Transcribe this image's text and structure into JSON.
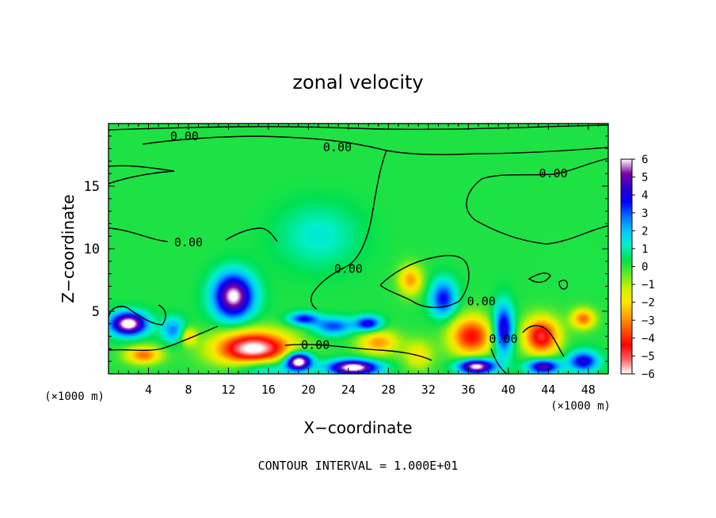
{
  "chart_data": {
    "type": "heatmap",
    "title": "zonal velocity",
    "xlabel": "X−coordinate",
    "ylabel": "Z−coordinate",
    "x_unit_left": "(×1000 m)",
    "x_unit_right": "(×1000 m)",
    "footer": "CONTOUR INTERVAL = 1.000E+01",
    "xlim": [
      0,
      50
    ],
    "ylim": [
      0,
      20
    ],
    "x_ticks": [
      "4",
      "8",
      "12",
      "16",
      "20",
      "24",
      "28",
      "32",
      "36",
      "40",
      "44",
      "48"
    ],
    "y_ticks": [
      "5",
      "10",
      "15"
    ],
    "colorbar": {
      "labels": [
        "6",
        "5",
        "4",
        "3",
        "2",
        "1",
        "0",
        "−1",
        "−2",
        "−3",
        "−4",
        "−5",
        "−6"
      ],
      "range": [
        -6,
        6
      ],
      "colors": [
        "#ffffff",
        "#7b00a8",
        "#2a00c8",
        "#0000ff",
        "#0072ff",
        "#00c8ff",
        "#00f0c8",
        "#00e050",
        "#5fe82a",
        "#c8f000",
        "#ffe600",
        "#ffa000",
        "#ff5000",
        "#ff0000",
        "#ff6060",
        "#ffffff"
      ]
    },
    "contour_labels": [
      {
        "text": "0.00",
        "x": 7.6,
        "y": 19.0
      },
      {
        "text": "0.00",
        "x": 22.9,
        "y": 18.1
      },
      {
        "text": "0.00",
        "x": 44.5,
        "y": 16.0
      },
      {
        "text": "0.00",
        "x": 8.0,
        "y": 10.5
      },
      {
        "text": "0.00",
        "x": 24.0,
        "y": 8.4
      },
      {
        "text": "0.00",
        "x": 37.3,
        "y": 5.8
      },
      {
        "text": "0.00",
        "x": 39.5,
        "y": 2.8
      },
      {
        "text": "0.00",
        "x": 20.7,
        "y": 2.3
      }
    ],
    "features": [
      {
        "x": 2.0,
        "y": 4.0,
        "sx": 1.8,
        "sy": 0.9,
        "value": 6.5
      },
      {
        "x": 3.5,
        "y": 1.5,
        "sx": 1.8,
        "sy": 0.7,
        "value": -3.5
      },
      {
        "x": 6.5,
        "y": 3.5,
        "sx": 1.2,
        "sy": 1.0,
        "value": 2.5
      },
      {
        "x": 8.0,
        "y": 3.0,
        "sx": 0.8,
        "sy": 0.7,
        "value": -2.5
      },
      {
        "x": 12.5,
        "y": 6.2,
        "sx": 2.0,
        "sy": 1.8,
        "value": 6.0
      },
      {
        "x": 14.5,
        "y": 2.0,
        "sx": 3.8,
        "sy": 1.4,
        "value": -6.5
      },
      {
        "x": 15.5,
        "y": 0.5,
        "sx": 3.0,
        "sy": 0.8,
        "value": 2.5
      },
      {
        "x": 19.0,
        "y": 1.0,
        "sx": 1.3,
        "sy": 0.7,
        "value": 7.0
      },
      {
        "x": 19.5,
        "y": 4.4,
        "sx": 1.5,
        "sy": 0.5,
        "value": 3.5
      },
      {
        "x": 22.5,
        "y": 3.8,
        "sx": 2.0,
        "sy": 0.7,
        "value": 3.0
      },
      {
        "x": 24.5,
        "y": 0.5,
        "sx": 2.5,
        "sy": 0.6,
        "value": 6.5
      },
      {
        "x": 26.0,
        "y": 4.0,
        "sx": 1.3,
        "sy": 0.6,
        "value": 4.0
      },
      {
        "x": 27.0,
        "y": 2.5,
        "sx": 2.0,
        "sy": 1.0,
        "value": -3.0
      },
      {
        "x": 30.2,
        "y": 7.5,
        "sx": 1.2,
        "sy": 1.2,
        "value": -3.0
      },
      {
        "x": 33.5,
        "y": 6.0,
        "sx": 1.3,
        "sy": 1.5,
        "value": 3.5
      },
      {
        "x": 31.0,
        "y": 1.5,
        "sx": 1.5,
        "sy": 1.2,
        "value": -2.0
      },
      {
        "x": 36.3,
        "y": 3.0,
        "sx": 2.2,
        "sy": 1.6,
        "value": -4.5
      },
      {
        "x": 36.8,
        "y": 0.6,
        "sx": 1.8,
        "sy": 0.6,
        "value": 6.5
      },
      {
        "x": 39.5,
        "y": 3.5,
        "sx": 1.0,
        "sy": 2.0,
        "value": 4.5
      },
      {
        "x": 43.3,
        "y": 3.0,
        "sx": 1.8,
        "sy": 1.5,
        "value": -5.0
      },
      {
        "x": 43.5,
        "y": 0.6,
        "sx": 1.6,
        "sy": 0.6,
        "value": 5.0
      },
      {
        "x": 47.5,
        "y": 4.4,
        "sx": 1.2,
        "sy": 0.8,
        "value": -3.5
      },
      {
        "x": 47.5,
        "y": 1.0,
        "sx": 1.5,
        "sy": 0.8,
        "value": 4.0
      },
      {
        "x": 21.0,
        "y": 11.0,
        "sx": 4.0,
        "sy": 2.5,
        "value": 1.2
      }
    ]
  }
}
